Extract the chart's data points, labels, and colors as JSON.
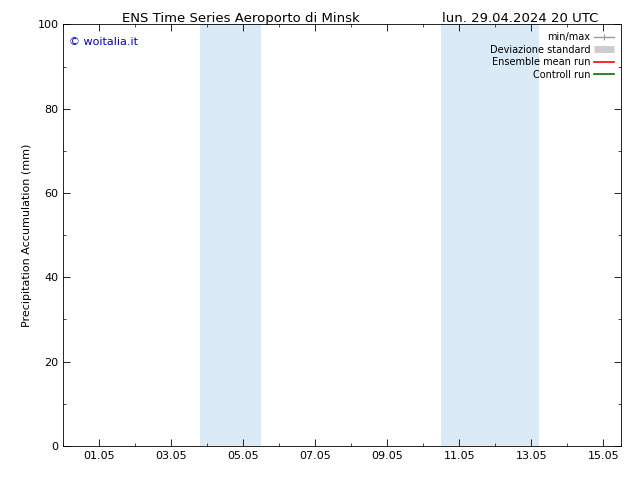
{
  "title_left": "ENS Time Series Aeroporto di Minsk",
  "title_right": "lun. 29.04.2024 20 UTC",
  "ylabel": "Precipitation Accumulation (mm)",
  "watermark": "© woitalia.it",
  "watermark_color": "#0000cc",
  "ylim": [
    0,
    100
  ],
  "yticks": [
    0,
    20,
    40,
    60,
    80,
    100
  ],
  "xtick_labels": [
    "01.05",
    "03.05",
    "05.05",
    "07.05",
    "09.05",
    "11.05",
    "13.05",
    "15.05"
  ],
  "xtick_positions": [
    1,
    3,
    5,
    7,
    9,
    11,
    13,
    15
  ],
  "xmin": 0.0,
  "xmax": 15.5,
  "blue_bands": [
    [
      3.8,
      4.5
    ],
    [
      4.5,
      5.5
    ],
    [
      10.5,
      11.5
    ],
    [
      11.5,
      13.2
    ]
  ],
  "band_color": "#daeaf7",
  "legend_entries": [
    {
      "label": "min/max",
      "color": "#999999",
      "lw": 1.0,
      "style": "errbar"
    },
    {
      "label": "Deviazione standard",
      "color": "#cccccc",
      "lw": 5.0,
      "style": "thick"
    },
    {
      "label": "Ensemble mean run",
      "color": "#ff0000",
      "lw": 1.2,
      "style": "line"
    },
    {
      "label": "Controll run",
      "color": "#007700",
      "lw": 1.2,
      "style": "line"
    }
  ],
  "title_fontsize": 9.5,
  "tick_fontsize": 8,
  "ylabel_fontsize": 8,
  "legend_fontsize": 7,
  "watermark_fontsize": 8,
  "background_color": "#ffffff",
  "axes_linewidth": 0.6
}
